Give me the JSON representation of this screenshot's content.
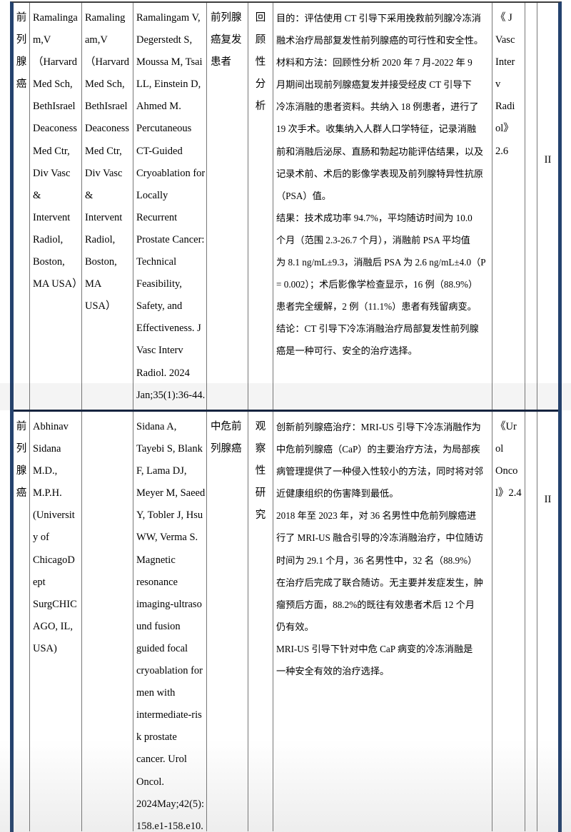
{
  "colors": {
    "outer_border": "#24426E",
    "grid_line": "#787878",
    "row_divider": "#16243F",
    "text": "#000000",
    "background": "#FFFFFF"
  },
  "table": {
    "rows": [
      {
        "disease": "前\n列\n腺\n癌",
        "author_affiliation": "Ramalinga\nm,V\n（Harvard\nMed Sch,\nBethIsrael\nDeaconess\nMed Ctr,\nDiv Vasc\n&\nIntervent\nRadiol,\nBoston,\nMA USA）",
        "author_affiliation_2": "Ramaling\nam,V\n（Harvard\nMed Sch,\nBethIsrael\nDeaconess\nMed Ctr,\nDiv Vasc\n&\nIntervent\nRadiol,\nBoston,\nMA\nUSA）",
        "citation": "Ramalingam V,\nDegerstedt S,\nMoussa M, Tsai\nLL, Einstein D,\nAhmed M.\nPercutaneous\nCT-Guided\nCryoablation for\nLocally\nRecurrent\nProstate Cancer:\nTechnical\nFeasibility,\nSafety, and\nEffectiveness. J\nVasc Interv\nRadiol. 2024\nJan;35(1):36-44.",
        "population": "前列腺\n癌复发\n患者",
        "study_design": "回\n顾\n性\n分\n析",
        "abstract": "目的：评估使用 CT 引导下采用挽救前列腺冷冻消\n融术治疗局部复发性前列腺癌的可行性和安全性。\n材料和方法：回顾性分析 2020 年 7 月-2022 年 9\n月期间出现前列腺癌复发并接受经皮 CT 引导下\n冷冻消融的患者资料。共纳入 18 例患者，进行了\n19 次手术。收集纳入人群人口学特征，记录消融\n前和消融后泌尿、直肠和勃起功能评估结果，以及\n记录术前、术后的影像学表现及前列腺特异性抗原\n（PSA）值。\n结果：技术成功率 94.7%，平均随访时间为 10.0\n个月（范围 2.3-26.7 个月），消融前 PSA 平均值\n为 8.1 ng/mL±9.3，消融后 PSA 为 2.6 ng/mL±4.0（P\n= 0.002）；术后影像学检查显示，16 例（88.9%）\n患者完全缓解，2 例（11.1%）患者有残留病变。\n结论：CT 引导下冷冻消融治疗局部复发性前列腺\n癌是一种可行、安全的治疗选择。",
        "journal_impact": "《 J\nVasc\nInter\nv\nRadi\nol》\n2.6",
        "spacer": "",
        "evidence_level": "II"
      },
      {
        "disease": "前\n列\n腺\n癌",
        "author_affiliation": "Abhinav\nSidana\nM.D.,\nM.P.H.\n(Universit\ny of\nChicagoD\nept\nSurgCHIC\nAGO, IL,\nUSA)",
        "author_affiliation_2": "",
        "citation": "Sidana A,\nTayebi S, Blank\nF, Lama DJ,\nMeyer M, Saeed\nY, Tobler J, Hsu\nWW, Verma S.\nMagnetic\nresonance\nimaging-ultraso\nund fusion\nguided focal\ncryoablation for\nmen with\nintermediate-ris\nk prostate\ncancer. Urol\nOncol.\n2024May;42(5):\n158.e1-158.e10.",
        "population": "中危前\n列腺癌",
        "study_design": "观\n察\n性\n研\n究",
        "abstract": "创新前列腺癌治疗：MRI-US 引导下冷冻消融作为\n中危前列腺癌（CaP）的主要治疗方法，为局部疾\n病管理提供了一种侵入性较小的方法，同时将对邻\n近健康组织的伤害降到最低。\n2018 年至 2023 年，对 36 名男性中危前列腺癌进\n行了 MRI-US 融合引导的冷冻消融治疗，中位随访\n时间为 29.1 个月，36 名男性中，32 名（88.9%）\n在治疗后完成了联合随访。无主要并发症发生，肿\n瘤预后方面，88.2%的既往有效患者术后 12 个月\n仍有效。\nMRI-US 引导下针对中危 CaP 病变的冷冻消融是\n一种安全有效的治疗选择。",
        "journal_impact": "《Ur\nol\nOnco\nl》2.4",
        "spacer": "",
        "evidence_level": "II"
      }
    ]
  }
}
